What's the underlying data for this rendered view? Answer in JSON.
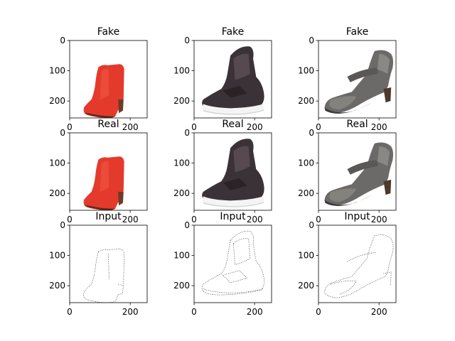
{
  "chart_data": {
    "type": "image-grid",
    "rows": 3,
    "cols": 3,
    "x_ticks": [
      0,
      200
    ],
    "y_ticks": [
      0,
      100,
      200
    ],
    "xlim": [
      0,
      256
    ],
    "ylim": [
      256,
      0
    ],
    "panels": [
      {
        "row": 0,
        "col": 0,
        "title": "Fake",
        "content": "red-boot"
      },
      {
        "row": 0,
        "col": 1,
        "title": "Fake",
        "content": "black-sneaker"
      },
      {
        "row": 0,
        "col": 2,
        "title": "Fake",
        "content": "gray-sandal"
      },
      {
        "row": 1,
        "col": 0,
        "title": "Real",
        "content": "red-boot"
      },
      {
        "row": 1,
        "col": 1,
        "title": "Real",
        "content": "black-sneaker"
      },
      {
        "row": 1,
        "col": 2,
        "title": "Real",
        "content": "gray-sandal"
      },
      {
        "row": 2,
        "col": 0,
        "title": "Input",
        "content": "boot-edges"
      },
      {
        "row": 2,
        "col": 1,
        "title": "Input",
        "content": "sneaker-edges"
      },
      {
        "row": 2,
        "col": 2,
        "title": "Input",
        "content": "sandal-edges"
      }
    ]
  }
}
